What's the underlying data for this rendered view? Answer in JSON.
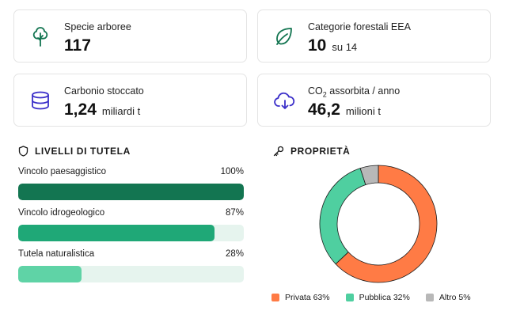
{
  "stats": [
    {
      "label": "Specie arboree",
      "value": "117",
      "unit": "",
      "icon": "tree-icon"
    },
    {
      "label": "Categorie forestali EEA",
      "value": "10",
      "unit": "su 14",
      "icon": "leaf-icon"
    },
    {
      "label": "Carbonio stoccato",
      "value": "1,24",
      "unit": "miliardi t",
      "icon": "database-icon"
    },
    {
      "label_prefix": "CO",
      "label_sub": "2",
      "label_suffix": " assorbita / anno",
      "value": "46,2",
      "unit": "milioni t",
      "icon": "cloud-download-icon"
    }
  ],
  "protection": {
    "title": "LIVELLI DI TUTELA",
    "icon": "shield-icon",
    "items": [
      {
        "label": "Vincolo paesaggistico",
        "percent_label": "100%",
        "value": 100,
        "color": "#137551"
      },
      {
        "label": "Vincolo idrogeologico",
        "percent_label": "87%",
        "value": 87,
        "color": "#1fa877"
      },
      {
        "label": "Tutela naturalistica",
        "percent_label": "28%",
        "value": 28,
        "color": "#5fd3a6"
      }
    ],
    "track_color": "#e6f4ee"
  },
  "ownership": {
    "title": "PROPRIETÀ",
    "icon": "key-icon",
    "chart_data": {
      "type": "pie",
      "series": [
        {
          "name": "Privata 63%",
          "value": 63,
          "color": "#ff7b45"
        },
        {
          "name": "Pubblica 32%",
          "value": 32,
          "color": "#4fcfa0"
        },
        {
          "name": "Altro 5%",
          "value": 5,
          "color": "#b8b8b8"
        }
      ]
    }
  },
  "colors": {
    "accent_icon": "#137551",
    "accent_icon_alt": "#3b2fc9"
  }
}
